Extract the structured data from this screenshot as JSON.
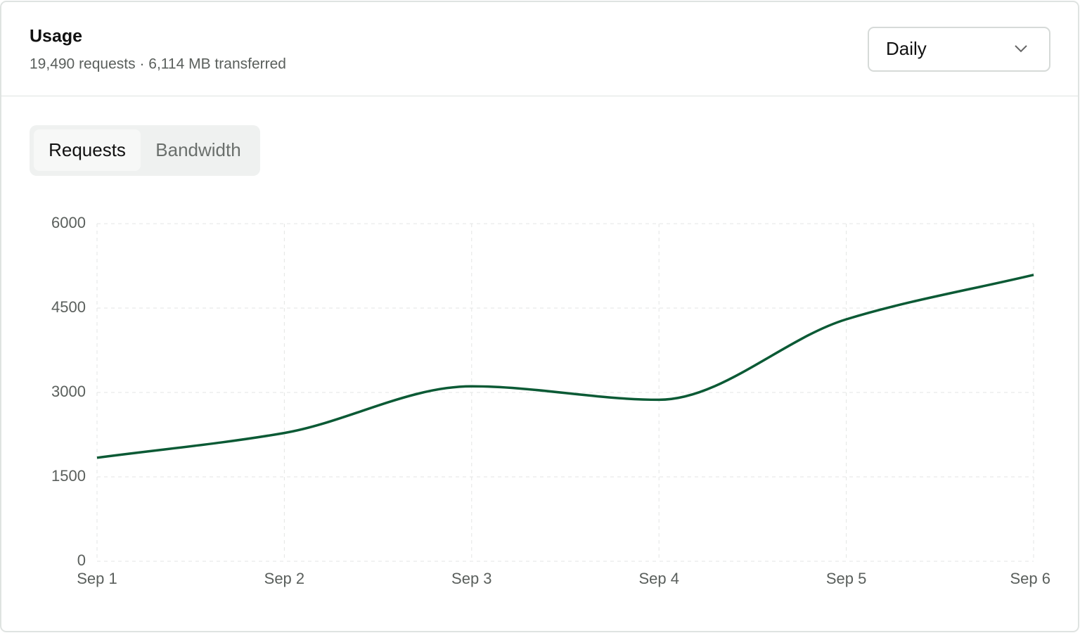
{
  "header": {
    "title": "Usage",
    "subtitle": "19,490 requests · 6,114 MB transferred",
    "period": "Daily"
  },
  "tabs": [
    "Requests",
    "Bandwidth"
  ],
  "chart_data": {
    "type": "line",
    "x": [
      "Sep 1",
      "Sep 2",
      "Sep 3",
      "Sep 4",
      "Sep 5",
      "Sep 6"
    ],
    "series": [
      {
        "name": "Requests",
        "color": "#0b5a35",
        "values": [
          1840,
          2280,
          3110,
          2870,
          4300,
          5090
        ]
      }
    ],
    "ylim": [
      0,
      6000
    ],
    "yticks": [
      0,
      1500,
      3000,
      4500,
      6000
    ],
    "grid": true
  }
}
